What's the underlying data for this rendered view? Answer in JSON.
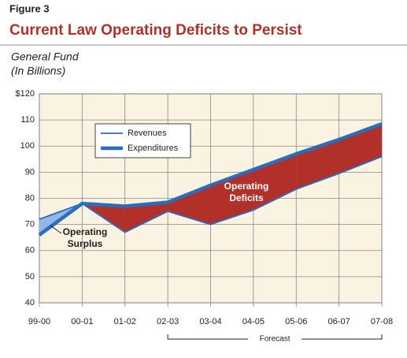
{
  "chart_data": {
    "type": "line",
    "figure_label": "Figure 3",
    "title": "Current Law Operating Deficits to Persist",
    "subtitle": "General Fund",
    "subtitle2": "(In Billions)",
    "categories": [
      "99-00",
      "00-01",
      "01-02",
      "02-03",
      "03-04",
      "04-05",
      "05-06",
      "06-07",
      "07-08"
    ],
    "series": [
      {
        "name": "Revenues",
        "color": "#2a6ebb",
        "values": [
          72,
          78,
          67,
          75,
          70,
          75.5,
          83.5,
          89.5,
          96
        ]
      },
      {
        "name": "Expenditures",
        "color": "#2a6ebb",
        "values": [
          66,
          78,
          77,
          78.5,
          85,
          91,
          97,
          102.5,
          108.5
        ]
      }
    ],
    "ylim": [
      40,
      120
    ],
    "yticks": [
      40,
      50,
      60,
      70,
      80,
      90,
      100,
      110,
      {
        "value": 120,
        "label": "$120"
      }
    ],
    "grid": true,
    "surplus_color": "#93b6e4",
    "deficit_color": "#b2302a",
    "annotations": {
      "surplus": [
        "Operating",
        "Surplus"
      ],
      "deficits": [
        "Operating",
        "Deficits"
      ],
      "forecast": "Forecast"
    }
  }
}
